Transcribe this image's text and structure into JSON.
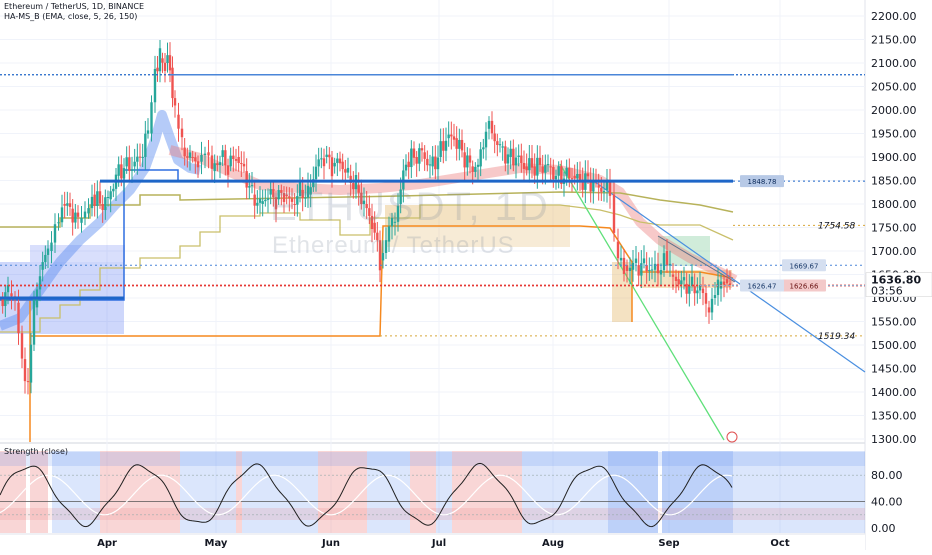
{
  "chart": {
    "title": "Ethereum / TetherUS, 1D, BINANCE",
    "indicator": "HA-MS_B (EMA, close, 5, 26, 150)",
    "oscillator": "Strength (close)",
    "watermark_symbol": "ETHUSDT, 1D",
    "watermark_name": "Ethereum / TetherUS",
    "price_axis": [
      "2200.00",
      "2150.00",
      "2100.00",
      "2050.00",
      "2000.00",
      "1950.00",
      "1900.00",
      "1850.00",
      "1800.00",
      "1750.00",
      "1700.00",
      "1650.00",
      "1600.00",
      "1550.00",
      "1500.00",
      "1450.00",
      "1400.00",
      "1350.00",
      "1300.00"
    ],
    "oscillator_axis": [
      "80.00",
      "40.00",
      "0.00"
    ],
    "time_axis": [
      "Apr",
      "May",
      "Jun",
      "Jul",
      "Aug",
      "Sep",
      "Oct"
    ],
    "current_price": "1636.80",
    "countdown": "03:56",
    "levels": {
      "high_line": "2075",
      "support_blue": "1848.78",
      "dotted_1754": "1754.58",
      "dotted_1669": "1669.67",
      "red_1626": "1626.66",
      "blue_1626": "1626.47",
      "dotted_1519": "1519.34"
    },
    "colors": {
      "up": "#26a69a",
      "down": "#ef5350",
      "blue_line": "#2962ff",
      "blue_level": "#1e66c8",
      "red_level": "#e53935",
      "orange": "#f5891f",
      "olive": "#b7b25a",
      "green_trend": "#5fe07a",
      "blue_trend": "#4a8fe0"
    }
  }
}
